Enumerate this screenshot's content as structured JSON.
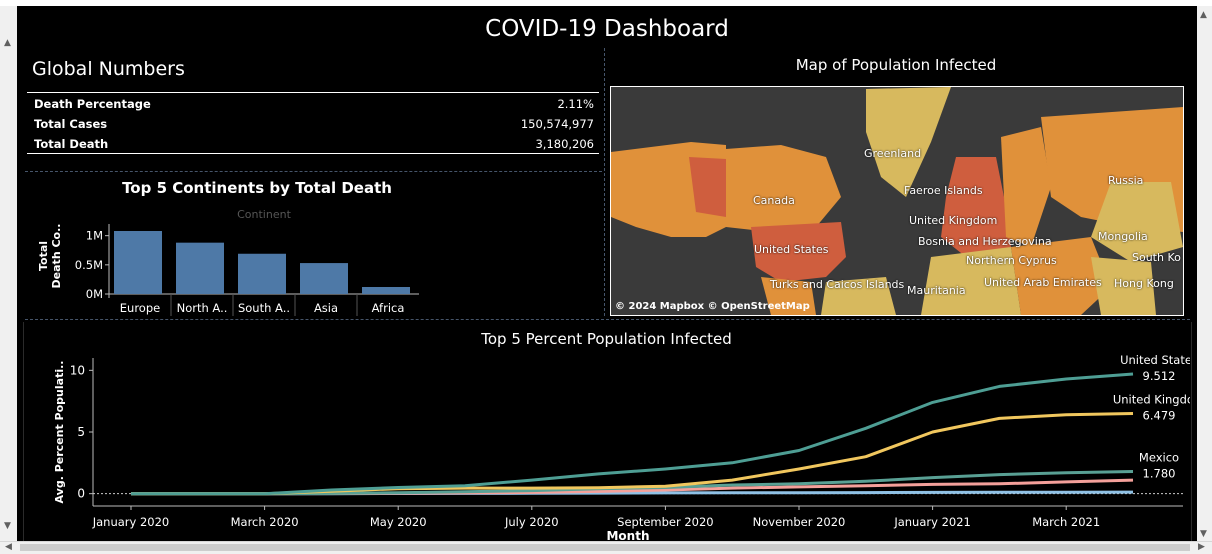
{
  "dashboard": {
    "title": "COVID-19 Dashboard"
  },
  "global_numbers": {
    "title": "Global Numbers",
    "rows": [
      {
        "label": "Death Percentage",
        "value": "2.11%"
      },
      {
        "label": "Total Cases",
        "value": "150,574,977"
      },
      {
        "label": "Total Death",
        "value": "3,180,206"
      }
    ]
  },
  "map": {
    "title": "Map of Population Infected",
    "attribution": "© 2024 Mapbox © OpenStreetMap",
    "labels": [
      "Greenland",
      "Faeroe Islands",
      "Russia",
      "Canada",
      "United Kingdom",
      "Mongolia",
      "Bosnia and Herzegovina",
      "United States",
      "Northern Cyprus",
      "South Ko",
      "Turks and Caicos Islands",
      "Mauritania",
      "United Arab Emirates",
      "Hong Kong"
    ],
    "colors": {
      "ocean": "#3a3a3a",
      "low": "#d7b95e",
      "mid": "#e0913a",
      "high": "#cf5e3e"
    }
  },
  "chart_data": [
    {
      "type": "bar",
      "title": "Top 5 Continents by Total Death",
      "header": "Continent",
      "ylabel": "Total Death Co..",
      "categories": [
        "Europe",
        "North A..",
        "South A..",
        "Asia",
        "Africa"
      ],
      "values": [
        1080000,
        880000,
        690000,
        530000,
        120000
      ],
      "yticks": [
        "0M",
        "0.5M",
        "1M"
      ],
      "ylim": [
        0,
        1200000
      ],
      "bar_color": "#4e79a7"
    },
    {
      "type": "line",
      "title": "Top 5 Percent Population Infected",
      "xlabel": "Month",
      "ylabel": "Avg. Percent Populati..",
      "x_ticks": [
        "January 2020",
        "March 2020",
        "May 2020",
        "July 2020",
        "September 2020",
        "November 2020",
        "January 2021",
        "March 2021"
      ],
      "x": [
        "Jan 2020",
        "Feb 2020",
        "Mar 2020",
        "Apr 2020",
        "May 2020",
        "Jun 2020",
        "Jul 2020",
        "Aug 2020",
        "Sep 2020",
        "Oct 2020",
        "Nov 2020",
        "Dec 2020",
        "Jan 2021",
        "Feb 2021",
        "Mar 2021",
        "Apr 2021"
      ],
      "yticks": [
        0,
        5,
        10
      ],
      "ylim": [
        -1,
        11
      ],
      "series": [
        {
          "name": "United States",
          "end_label": "9.512",
          "color": "#4e9e94",
          "values": [
            0,
            0,
            0,
            0.3,
            0.5,
            0.65,
            1.1,
            1.6,
            2.0,
            2.5,
            3.5,
            5.3,
            7.4,
            8.7,
            9.3,
            9.7
          ]
        },
        {
          "name": "United Kingdom",
          "end_label": "6.479",
          "color": "#f1c75e",
          "values": [
            0,
            0,
            0,
            0.2,
            0.4,
            0.45,
            0.45,
            0.48,
            0.6,
            1.1,
            2.0,
            3.0,
            5.0,
            6.1,
            6.4,
            6.5
          ]
        },
        {
          "name": "Mexico",
          "end_label": "1.780",
          "color": "#59a094",
          "values": [
            0,
            0,
            0,
            0.02,
            0.08,
            0.15,
            0.25,
            0.4,
            0.5,
            0.7,
            0.8,
            1.0,
            1.3,
            1.55,
            1.7,
            1.8
          ]
        },
        {
          "name": "",
          "end_label": "",
          "color": "#f4a09a",
          "values": [
            0,
            0,
            0,
            0.01,
            0.03,
            0.06,
            0.1,
            0.18,
            0.3,
            0.45,
            0.55,
            0.65,
            0.75,
            0.8,
            0.95,
            1.1
          ]
        },
        {
          "name": "",
          "end_label": "",
          "color": "#8fc1e5",
          "values": [
            0,
            0,
            0,
            0.0,
            0.01,
            0.02,
            0.03,
            0.05,
            0.06,
            0.07,
            0.08,
            0.09,
            0.1,
            0.11,
            0.12,
            0.13
          ]
        }
      ]
    }
  ]
}
